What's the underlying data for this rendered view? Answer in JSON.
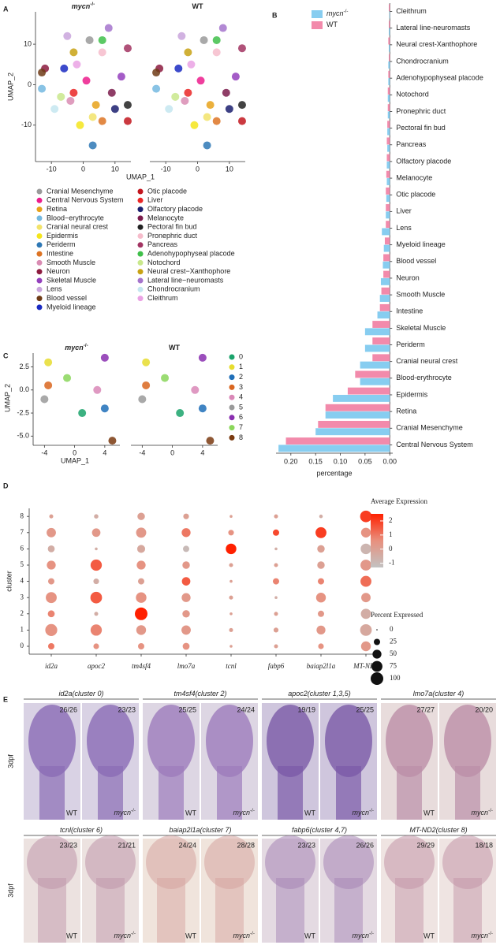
{
  "chart_data": [
    {
      "type": "scatter",
      "panel": "A",
      "subtitles": [
        {
          "text": "mycn",
          "sup": "-/-"
        },
        {
          "text": "WT"
        }
      ],
      "xlabel": "UMAP_1",
      "ylabel": "UMAP_2",
      "xlim": [
        -15,
        15
      ],
      "ylim": [
        -19,
        18
      ],
      "xticks": [
        -10,
        0,
        10
      ],
      "yticks": [
        -10,
        0,
        10
      ],
      "series": [
        {
          "name": "Cranial Mesenchyme",
          "color": "#9a9a9a",
          "x": [
            2
          ],
          "y": [
            11
          ]
        },
        {
          "name": "Central Nervous System",
          "color": "#ec1c8c",
          "x": [
            1
          ],
          "y": [
            1
          ]
        },
        {
          "name": "Retina",
          "color": "#e8a21a",
          "x": [
            4
          ],
          "y": [
            -5
          ]
        },
        {
          "name": "Blood−erythrocyte",
          "color": "#74b9e0",
          "x": [
            -13
          ],
          "y": [
            -1
          ]
        },
        {
          "name": "Cranial neural crest",
          "color": "#f2e36a",
          "x": [
            3
          ],
          "y": [
            -8
          ]
        },
        {
          "name": "Epidermis",
          "color": "#f4e51c",
          "x": [
            -1
          ],
          "y": [
            -10
          ]
        },
        {
          "name": "Periderm",
          "color": "#2e78b5",
          "x": [
            3
          ],
          "y": [
            -15
          ]
        },
        {
          "name": "Intestine",
          "color": "#dd7424",
          "x": [
            6
          ],
          "y": [
            -9
          ]
        },
        {
          "name": "Smooth Muscle",
          "color": "#d98cb3",
          "x": [
            -4
          ],
          "y": [
            -4
          ]
        },
        {
          "name": "Neuron",
          "color": "#8c1b3f",
          "x": [
            -12
          ],
          "y": [
            4
          ]
        },
        {
          "name": "Skeletal Muscle",
          "color": "#9440bd",
          "x": [
            12
          ],
          "y": [
            2
          ]
        },
        {
          "name": "Lens",
          "color": "#c9a5dc",
          "x": [
            -5
          ],
          "y": [
            12
          ]
        },
        {
          "name": "Blood vessel",
          "color": "#6e3b16",
          "x": [
            -13
          ],
          "y": [
            3
          ]
        },
        {
          "name": "Myeloid lineage",
          "color": "#1a2ac2",
          "x": [
            -6
          ],
          "y": [
            4
          ]
        },
        {
          "name": "Otic placode",
          "color": "#c2161e",
          "x": [
            14
          ],
          "y": [
            -9
          ]
        },
        {
          "name": "Liver",
          "color": "#ea2626",
          "x": [
            -3
          ],
          "y": [
            -2
          ]
        },
        {
          "name": "Olfactory placode",
          "color": "#1b1f6e",
          "x": [
            10
          ],
          "y": [
            -6
          ]
        },
        {
          "name": "Melanocyte",
          "color": "#7b1c4c",
          "x": [
            9
          ],
          "y": [
            -2
          ]
        },
        {
          "name": "Pectoral fin bud",
          "color": "#222222",
          "x": [
            14
          ],
          "y": [
            -5
          ]
        },
        {
          "name": "Pronephric duct",
          "color": "#f6bccb",
          "x": [
            6
          ],
          "y": [
            8
          ]
        },
        {
          "name": "Pancreas",
          "color": "#a23462",
          "x": [
            14
          ],
          "y": [
            9
          ]
        },
        {
          "name": "Adenohypophyseal placode",
          "color": "#3fbf4a",
          "x": [
            6
          ],
          "y": [
            11
          ]
        },
        {
          "name": "Notochord",
          "color": "#c9e88c",
          "x": [
            -7
          ],
          "y": [
            -3
          ]
        },
        {
          "name": "Neural crest−Xanthophore",
          "color": "#c8a214",
          "x": [
            -3
          ],
          "y": [
            8
          ]
        },
        {
          "name": "Lateral line−neuromasts",
          "color": "#a574cc",
          "x": [
            8
          ],
          "y": [
            14
          ]
        },
        {
          "name": "Chondrocranium",
          "color": "#c4e6f0",
          "x": [
            -9
          ],
          "y": [
            -6
          ]
        },
        {
          "name": "Cleithrum",
          "color": "#eaa2e4",
          "x": [
            -2
          ],
          "y": [
            5
          ]
        }
      ]
    },
    {
      "type": "barh",
      "panel": "B",
      "xlabel": "percentage",
      "categories": [
        "Cleithrum",
        "Lateral line-neuromasts",
        "Neural crest-Xanthophore",
        "Chondrocranium",
        "Adenohypophyseal placode",
        "Notochord",
        "Pronephric duct",
        "Pectoral fin bud",
        "Pancreas",
        "Olfactory placode",
        "Melanocyte",
        "Otic placode",
        "Liver",
        "Lens",
        "Myeloid lineage",
        "Blood vessel",
        "Neuron",
        "Smooth Muscle",
        "Intestine",
        "Skeletal Muscle",
        "Periderm",
        "Cranial neural crest",
        "Blood-erythrocyte",
        "Epidermis",
        "Retina",
        "Cranial Mesenchyme",
        "Central Nervous System"
      ],
      "series": [
        {
          "name": "mycn",
          "name_sup": "-/-",
          "color": "#87cdf0",
          "values": [
            0.001,
            0.002,
            0.002,
            0.003,
            0.003,
            0.004,
            0.004,
            0.005,
            0.005,
            0.006,
            0.006,
            0.007,
            0.008,
            0.016,
            0.012,
            0.014,
            0.018,
            0.02,
            0.025,
            0.05,
            0.05,
            0.06,
            0.06,
            0.115,
            0.13,
            0.15,
            0.225
          ]
        },
        {
          "name": "WT",
          "color": "#f28aab",
          "values": [
            0.002,
            0.002,
            0.003,
            0.002,
            0.003,
            0.004,
            0.004,
            0.005,
            0.006,
            0.006,
            0.007,
            0.008,
            0.008,
            0.008,
            0.01,
            0.013,
            0.013,
            0.017,
            0.02,
            0.035,
            0.035,
            0.035,
            0.07,
            0.085,
            0.13,
            0.145,
            0.21
          ]
        }
      ],
      "xlim": [
        0.23,
        -0.006
      ],
      "xticks": [
        {
          "value": 0.2,
          "label": "0.20"
        },
        0.15,
        {
          "value": 0.1,
          "label": "0.10"
        },
        0.05,
        {
          "value": 0,
          "label": "0.00"
        }
      ]
    },
    {
      "type": "scatter",
      "panel": "C",
      "subtitles": [
        {
          "text": "mycn",
          "sup": "-/-"
        },
        {
          "text": "WT"
        }
      ],
      "xlabel": "UMAP_1",
      "ylabel": "UMAP_2",
      "xlim": [
        -5.5,
        6
      ],
      "ylim": [
        -6,
        4
      ],
      "xticks": [
        -4,
        0,
        4
      ],
      "yticks": [
        2.5,
        {
          "value": 0,
          "label": "0.0"
        },
        -2.5,
        {
          "value": -5,
          "label": "-5.0"
        }
      ],
      "series": [
        {
          "name": "0",
          "color": "#1aa36b",
          "x": [
            1
          ],
          "y": [
            -2.5
          ]
        },
        {
          "name": "1",
          "color": "#e6dc2e",
          "x": [
            -3.5
          ],
          "y": [
            3
          ]
        },
        {
          "name": "2",
          "color": "#1f6fb8",
          "x": [
            4
          ],
          "y": [
            -2
          ]
        },
        {
          "name": "3",
          "color": "#d9661f",
          "x": [
            -3.5
          ],
          "y": [
            0.5
          ]
        },
        {
          "name": "4",
          "color": "#d987b7",
          "x": [
            3
          ],
          "y": [
            0
          ]
        },
        {
          "name": "5",
          "color": "#9a9a9a",
          "x": [
            -4
          ],
          "y": [
            -1
          ]
        },
        {
          "name": "6",
          "color": "#8a2fb0",
          "x": [
            4
          ],
          "y": [
            3.5
          ]
        },
        {
          "name": "7",
          "color": "#8ad65a",
          "x": [
            -1
          ],
          "y": [
            1.3
          ]
        },
        {
          "name": "8",
          "color": "#7a3a10",
          "x": [
            5
          ],
          "y": [
            -5.5
          ]
        }
      ]
    },
    {
      "type": "dot",
      "panel": "D",
      "ylabel": "cluster",
      "categories": [
        "id2a",
        "apoc2",
        "tm4sf4",
        "lmo7a",
        "tcnl",
        "fabp6",
        "baiap2l1a",
        "MT-ND2"
      ],
      "clusters": [
        "0",
        "1",
        "2",
        "3",
        "4",
        "5",
        "6",
        "7",
        "8"
      ],
      "avg_expression": [
        [
          1,
          0.5,
          0.5,
          0.5,
          0,
          0,
          0.5,
          0.3
        ],
        [
          0.5,
          0.8,
          0.3,
          0.3,
          0,
          0,
          0.3,
          -0.3
        ],
        [
          0.8,
          -0.5,
          2.5,
          0.3,
          0,
          0,
          0.3,
          -0.5
        ],
        [
          0.5,
          1.5,
          0.5,
          0.3,
          0,
          -0.5,
          0.5,
          0.3
        ],
        [
          0.3,
          -0.5,
          0,
          1.5,
          0,
          0.8,
          0.8,
          1.2
        ],
        [
          0.5,
          1.5,
          0.5,
          0.3,
          0,
          0,
          0,
          0.3
        ],
        [
          -0.5,
          -0.5,
          -0.3,
          -1,
          2.5,
          -0.5,
          0,
          -0.8
        ],
        [
          0.3,
          0.3,
          0.3,
          1,
          0.5,
          1.8,
          2,
          0.5
        ],
        [
          0,
          -0.5,
          0,
          0,
          0,
          0,
          -0.5,
          2
        ]
      ],
      "pct_expressed": [
        [
          25,
          20,
          25,
          30,
          5,
          10,
          20,
          60
        ],
        [
          90,
          80,
          60,
          55,
          10,
          15,
          50,
          85
        ],
        [
          30,
          10,
          100,
          35,
          5,
          10,
          25,
          65
        ],
        [
          75,
          85,
          70,
          50,
          10,
          5,
          60,
          55
        ],
        [
          25,
          20,
          25,
          45,
          5,
          25,
          25,
          75
        ],
        [
          50,
          80,
          50,
          35,
          10,
          10,
          35,
          75
        ],
        [
          30,
          5,
          40,
          25,
          70,
          5,
          35,
          70
        ],
        [
          55,
          45,
          65,
          50,
          20,
          25,
          75,
          60
        ],
        [
          10,
          12,
          35,
          20,
          5,
          10,
          8,
          85
        ]
      ],
      "color_title": "Average Expression",
      "clim": [
        -1.3,
        2.5
      ],
      "cticks": [
        2,
        1,
        0,
        -1
      ],
      "colors": [
        "#c2c2c2",
        "#e8907e",
        "#ff2000"
      ],
      "size_title": "Percent Expressed",
      "size_lim": [
        0,
        100
      ],
      "size_ticks": [
        0,
        25,
        50,
        75,
        100
      ]
    }
  ],
  "panel_e": {
    "panel": "E",
    "timepoint": "3dpf",
    "labels": {
      "wt": "WT",
      "mutant": "mycn",
      "mutant_sup": "-/-"
    },
    "rows": [
      [
        {
          "gene": "id2a",
          "note": "(cluster 0)",
          "counts": [
            "26/26",
            "23/23"
          ]
        },
        {
          "gene": "tm4sf4",
          "note": "(cluster 2)",
          "counts": [
            "25/25",
            "24/24"
          ]
        },
        {
          "gene": "apoc2",
          "note": "(cluster 1,3,5)",
          "counts": [
            "19/19",
            "25/25"
          ]
        },
        {
          "gene": "lmo7a",
          "note": "(cluster 4)",
          "counts": [
            "27/27",
            "20/20"
          ]
        }
      ],
      [
        {
          "gene": "tcnl",
          "note": "(cluster 6)",
          "counts": [
            "23/23",
            "21/21"
          ]
        },
        {
          "gene": "baiap2l1a",
          "note": "(cluster 7)",
          "counts": [
            "24/24",
            "28/28"
          ]
        },
        {
          "gene": "fabp6",
          "note": "(cluster 4,7)",
          "counts": [
            "23/23",
            "26/26"
          ]
        },
        {
          "gene": "MT-ND2",
          "note": "(cluster 8)",
          "counts": [
            "29/29",
            "18/18"
          ]
        }
      ]
    ]
  }
}
